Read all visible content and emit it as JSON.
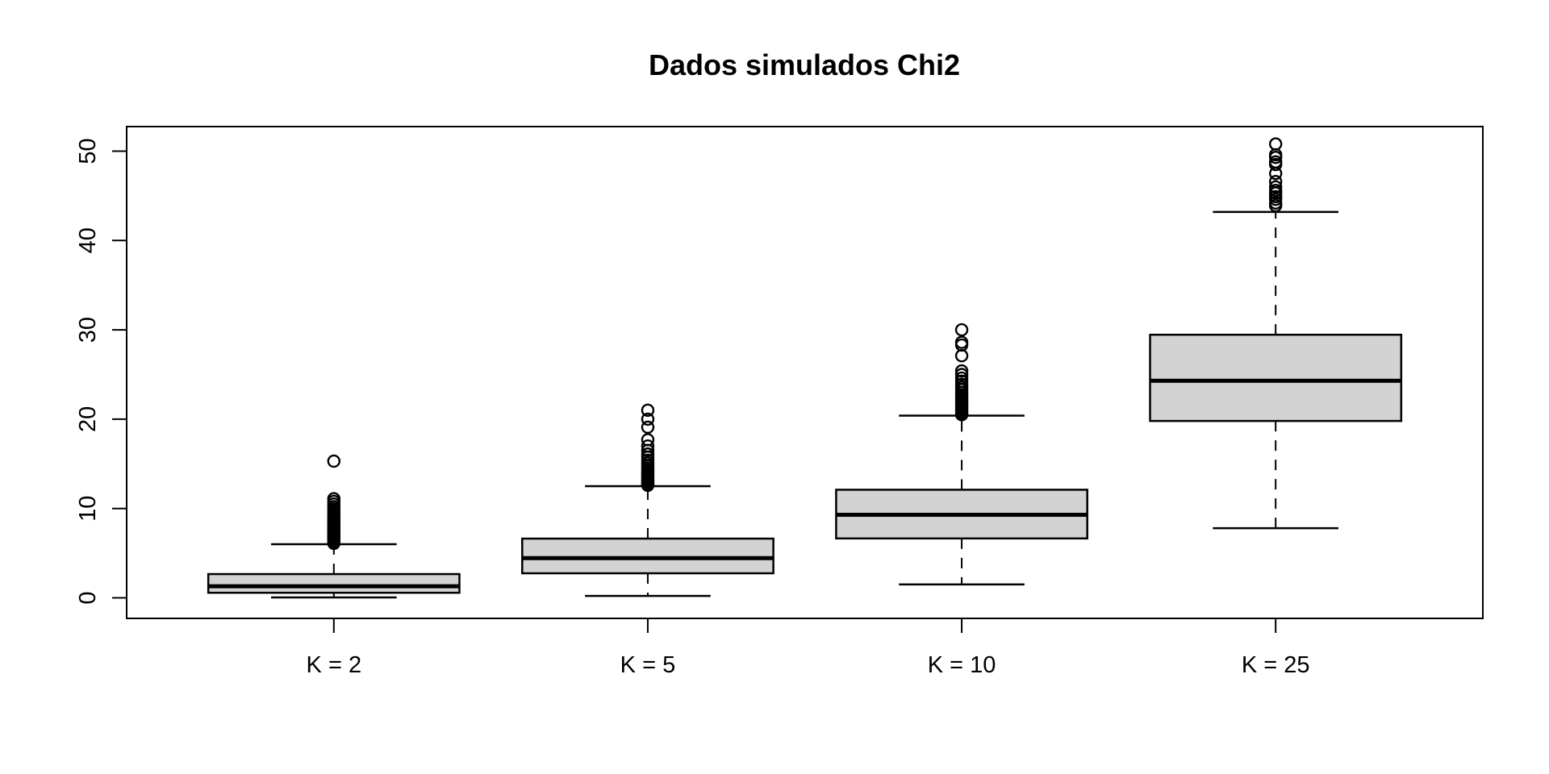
{
  "chart_data": {
    "type": "boxplot",
    "title": "Dados simulados Chi2",
    "categories": [
      "K = 2",
      "K = 5",
      "K = 10",
      "K = 25"
    ],
    "xlabel": "",
    "ylabel": "",
    "yticks": [
      0,
      10,
      20,
      30,
      40,
      50
    ],
    "ylim": [
      -2.3,
      52.75
    ],
    "xlim": [
      0.34,
      4.66
    ],
    "grid": false,
    "legend": "none",
    "box_width": 0.8,
    "staple_width": 0.4,
    "styles": {
      "box_fill": "#d3d3d3",
      "line_color": "#000000",
      "background": "#ffffff"
    },
    "series": [
      {
        "label": "K = 2",
        "position": 1,
        "stats": {
          "whisker_low": 0.05,
          "q1": 0.57,
          "median": 1.3,
          "q3": 2.66,
          "whisker_high": 6.0
        },
        "outliers": [
          6.1,
          6.25,
          6.4,
          6.55,
          6.7,
          6.85,
          7.0,
          7.15,
          7.3,
          7.45,
          7.6,
          7.75,
          7.9,
          8.05,
          8.2,
          8.4,
          8.6,
          8.8,
          9.0,
          9.2,
          9.45,
          9.7,
          9.95,
          10.2,
          10.5,
          10.8,
          11.1,
          15.3
        ]
      },
      {
        "label": "K = 5",
        "position": 2,
        "stats": {
          "whisker_low": 0.22,
          "q1": 2.75,
          "median": 4.45,
          "q3": 6.63,
          "whisker_high": 12.5
        },
        "outliers": [
          12.6,
          12.75,
          12.9,
          13.05,
          13.2,
          13.35,
          13.5,
          13.7,
          13.9,
          14.1,
          14.3,
          14.55,
          14.8,
          15.1,
          15.4,
          15.75,
          16.1,
          16.5,
          17.0,
          17.7,
          19.1,
          20.0,
          21.0
        ]
      },
      {
        "label": "K = 10",
        "position": 3,
        "stats": {
          "whisker_low": 1.5,
          "q1": 6.65,
          "median": 9.3,
          "q3": 12.1,
          "whisker_high": 20.4
        },
        "outliers": [
          20.5,
          20.65,
          20.8,
          21.0,
          21.2,
          21.4,
          21.6,
          21.8,
          22.0,
          22.25,
          22.5,
          22.75,
          23.0,
          23.3,
          23.6,
          23.9,
          24.25,
          24.6,
          25.0,
          25.4,
          27.1,
          28.3,
          28.6,
          30.0
        ]
      },
      {
        "label": "K = 25",
        "position": 4,
        "stats": {
          "whisker_low": 7.8,
          "q1": 19.8,
          "median": 24.3,
          "q3": 29.45,
          "whisker_high": 43.2
        },
        "outliers": [
          43.9,
          44.2,
          44.6,
          44.9,
          45.3,
          45.6,
          46.0,
          46.6,
          47.5,
          48.5,
          48.8,
          49.3,
          49.6,
          50.8
        ]
      }
    ]
  }
}
